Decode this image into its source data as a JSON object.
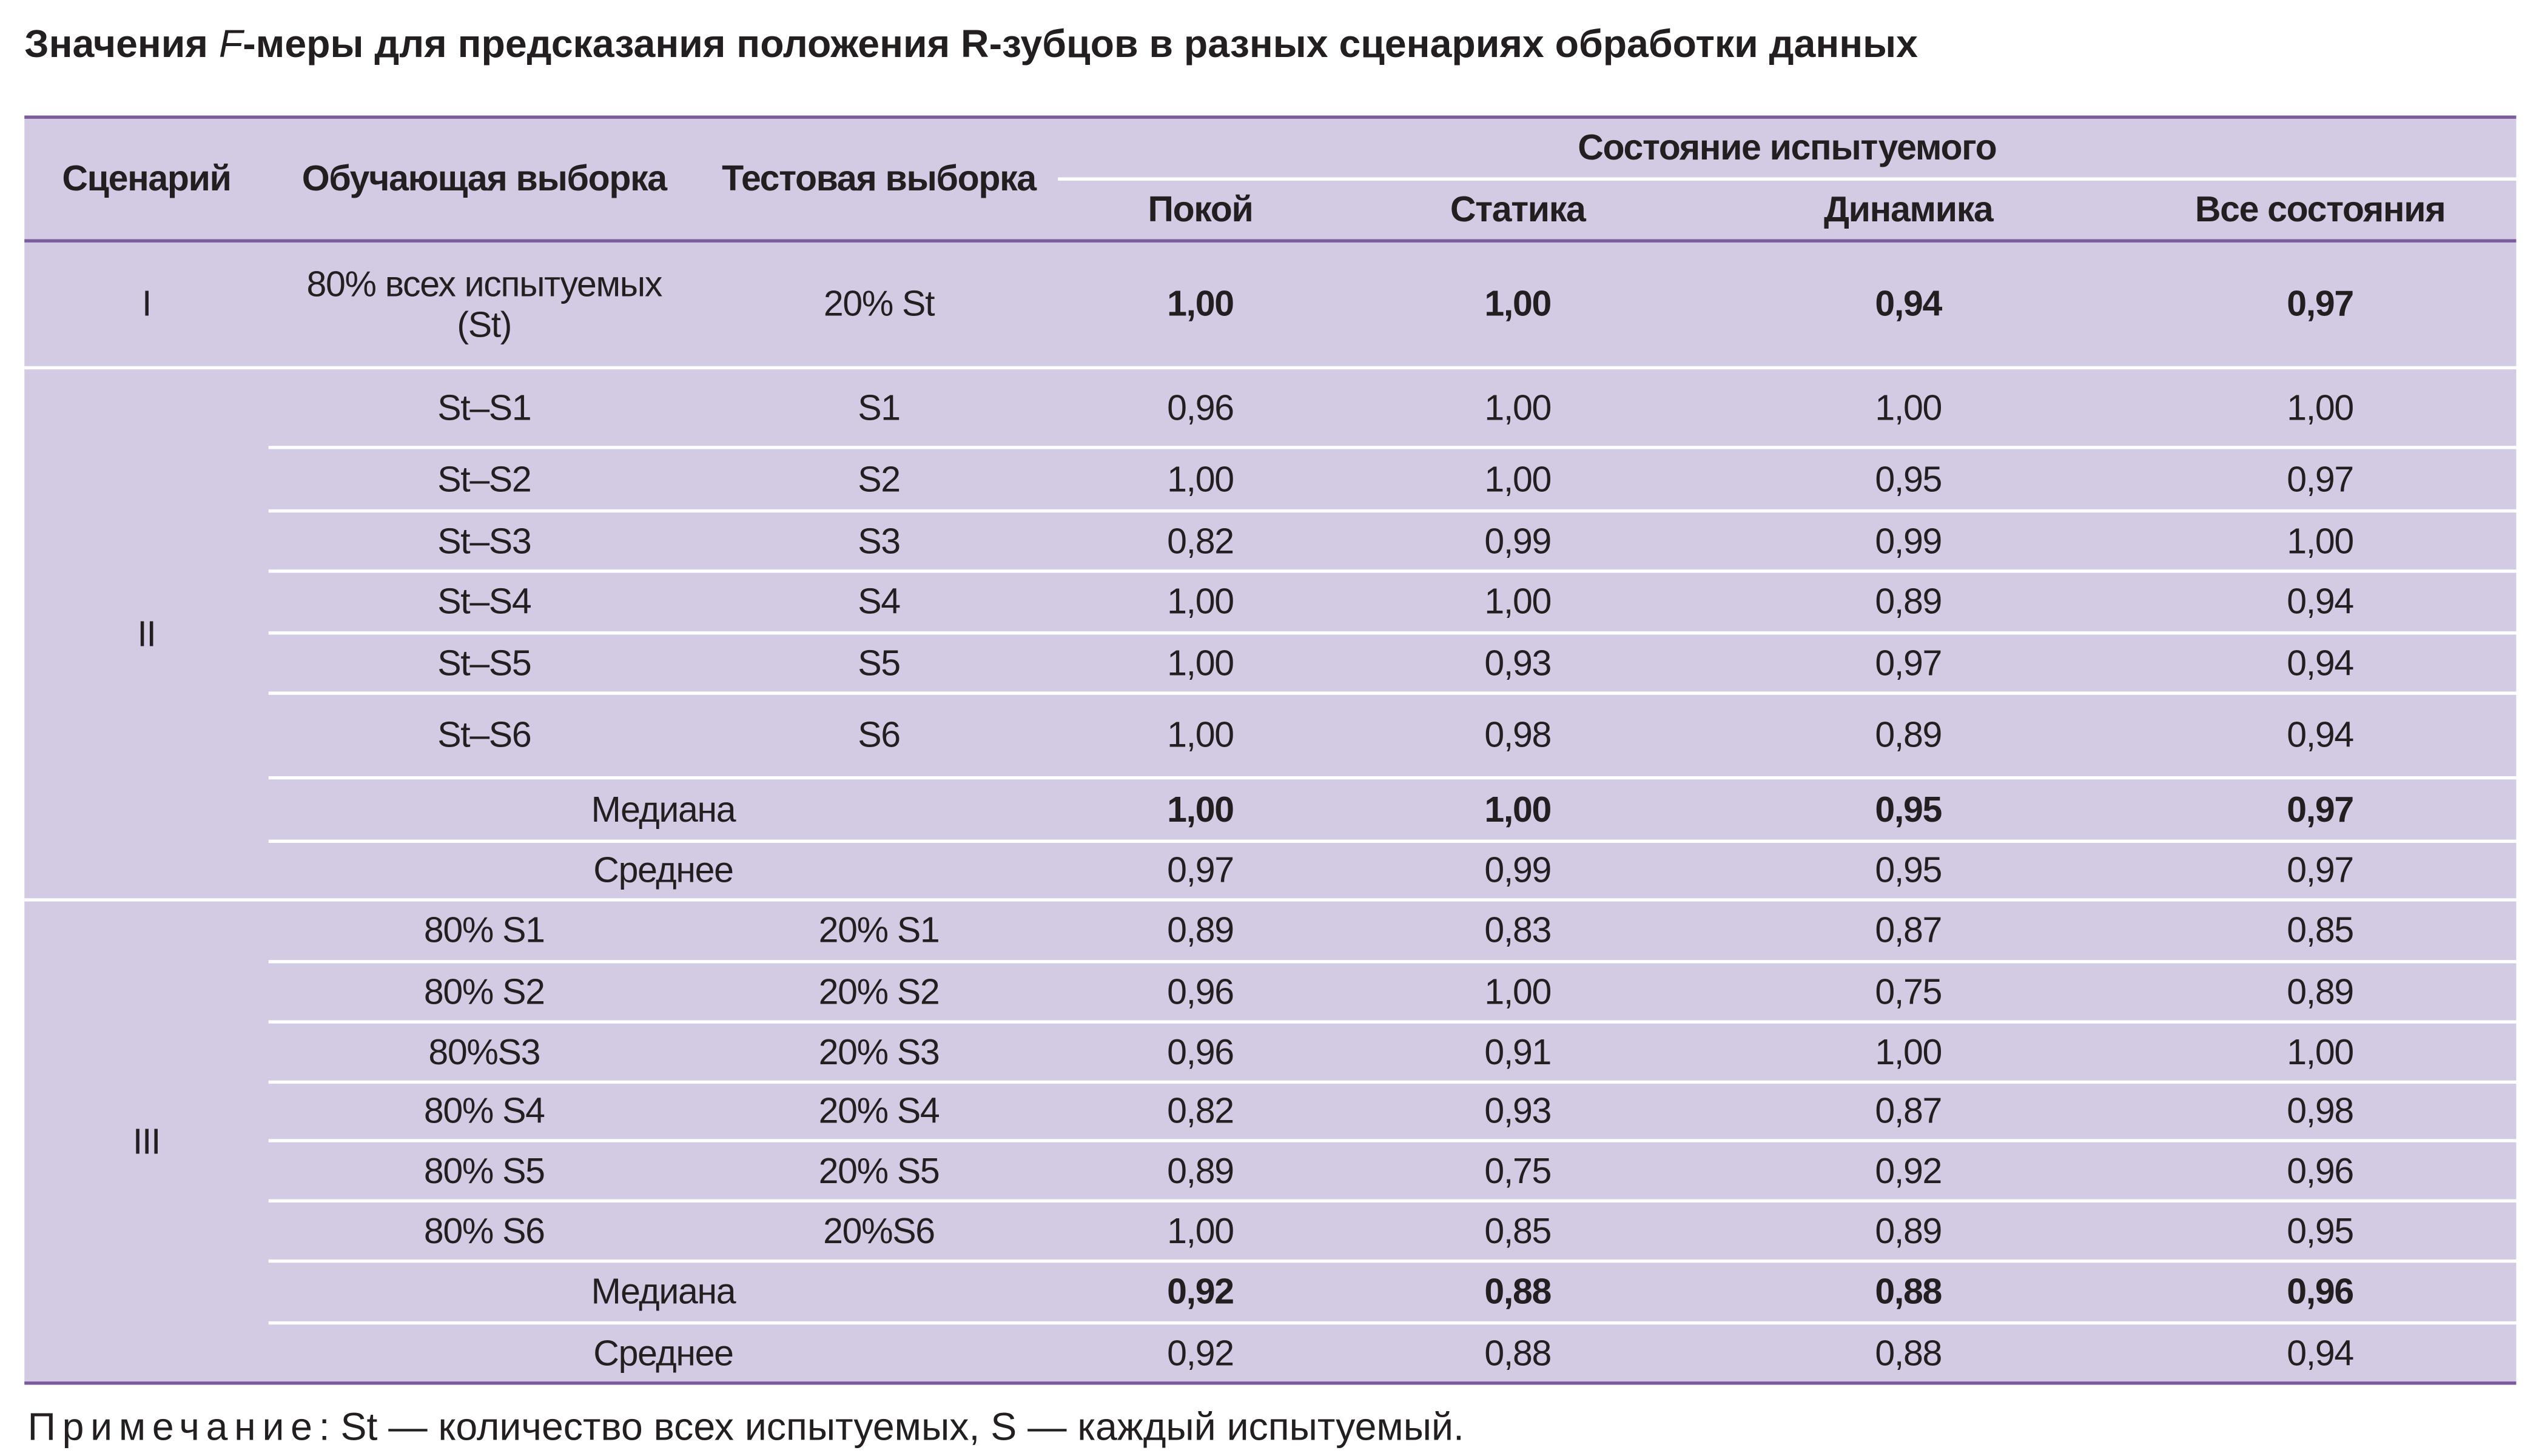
{
  "title": {
    "prefix": "Значения ",
    "italic": "F",
    "suffix": "-меры для предсказания положения R-зубцов в разных сценариях обработки данных"
  },
  "table": {
    "header": {
      "scenario": "Сценарий",
      "train": "Обучающая выборка",
      "test": "Тестовая выборка",
      "state_group": "Состояние испытуемого",
      "states": [
        "Покой",
        "Статика",
        "Динамика",
        "Все состояния"
      ]
    },
    "groups": [
      {
        "scenario": "I",
        "rows": [
          {
            "train": "80% всех испытуемых (St)",
            "test": "20% St",
            "values": [
              "1,00",
              "1,00",
              "0,94",
              "0,97"
            ],
            "bold": true
          }
        ]
      },
      {
        "scenario": "II",
        "rows": [
          {
            "train": "St–S1",
            "test": "S1",
            "values": [
              "0,96",
              "1,00",
              "1,00",
              "1,00"
            ]
          },
          {
            "train": "St–S2",
            "test": "S2",
            "values": [
              "1,00",
              "1,00",
              "0,95",
              "0,97"
            ]
          },
          {
            "train": "St–S3",
            "test": "S3",
            "values": [
              "0,82",
              "0,99",
              "0,99",
              "1,00"
            ]
          },
          {
            "train": "St–S4",
            "test": "S4",
            "values": [
              "1,00",
              "1,00",
              "0,89",
              "0,94"
            ]
          },
          {
            "train": "St–S5",
            "test": "S5",
            "values": [
              "1,00",
              "0,93",
              "0,97",
              "0,94"
            ]
          },
          {
            "train": "St–S6",
            "test": "S6",
            "values": [
              "1,00",
              "0,98",
              "0,89",
              "0,94"
            ]
          },
          {
            "label": "Медиана",
            "values": [
              "1,00",
              "1,00",
              "0,95",
              "0,97"
            ],
            "bold": true
          },
          {
            "label": "Среднее",
            "values": [
              "0,97",
              "0,99",
              "0,95",
              "0,97"
            ]
          }
        ]
      },
      {
        "scenario": "III",
        "rows": [
          {
            "train": "80% S1",
            "test": "20% S1",
            "values": [
              "0,89",
              "0,83",
              "0,87",
              "0,85"
            ]
          },
          {
            "train": "80% S2",
            "test": "20% S2",
            "values": [
              "0,96",
              "1,00",
              "0,75",
              "0,89"
            ]
          },
          {
            "train": "80%S3",
            "test": "20% S3",
            "values": [
              "0,96",
              "0,91",
              "1,00",
              "1,00"
            ]
          },
          {
            "train": "80% S4",
            "test": "20% S4",
            "values": [
              "0,82",
              "0,93",
              "0,87",
              "0,98"
            ]
          },
          {
            "train": "80% S5",
            "test": "20% S5",
            "values": [
              "0,89",
              "0,75",
              "0,92",
              "0,96"
            ]
          },
          {
            "train": "80% S6",
            "test": "20%S6",
            "values": [
              "1,00",
              "0,85",
              "0,89",
              "0,95"
            ]
          },
          {
            "label": "Медиана",
            "values": [
              "0,92",
              "0,88",
              "0,88",
              "0,96"
            ],
            "bold": true
          },
          {
            "label": "Среднее",
            "values": [
              "0,92",
              "0,88",
              "0,88",
              "0,94"
            ]
          }
        ]
      }
    ]
  },
  "note": {
    "label": "Примечание",
    "text": ": St — количество всех испытуемых, S — каждый испытуемый."
  }
}
